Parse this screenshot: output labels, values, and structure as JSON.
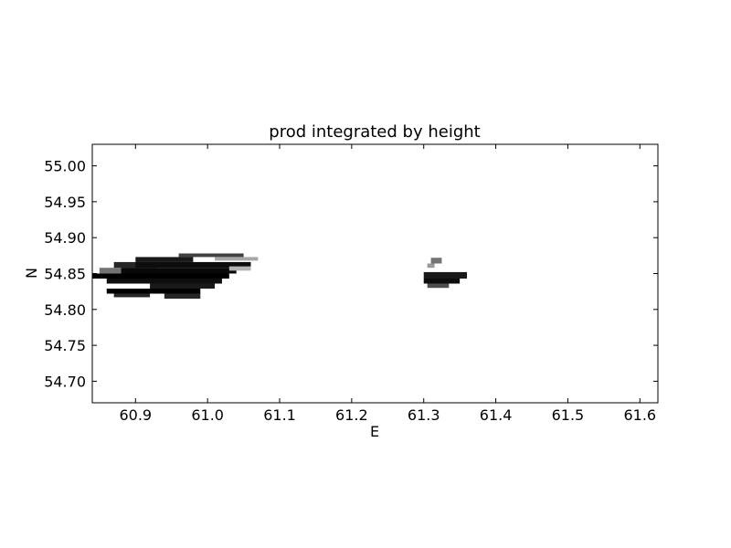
{
  "chart_data": {
    "type": "heatmap",
    "title": "prod integrated by height",
    "xlabel": "E",
    "ylabel": "N",
    "xlim": [
      60.84,
      61.625
    ],
    "ylim": [
      54.67,
      55.03
    ],
    "x_ticks": [
      60.9,
      61.0,
      61.1,
      61.2,
      61.3,
      61.4,
      61.5,
      61.6
    ],
    "x_tick_labels": [
      "60.9",
      "61.0",
      "61.1",
      "61.2",
      "61.3",
      "61.4",
      "61.5",
      "61.6"
    ],
    "y_ticks": [
      54.7,
      54.75,
      54.8,
      54.85,
      54.9,
      54.95,
      55.0
    ],
    "y_tick_labels": [
      "54.70",
      "54.75",
      "54.80",
      "54.85",
      "54.90",
      "54.95",
      "55.00"
    ],
    "colormap": "white-to-black",
    "grid": false,
    "cells": [
      {
        "x0": 60.84,
        "x1": 60.87,
        "y0": 54.843,
        "y1": 54.85,
        "v": 0.35
      },
      {
        "x0": 60.85,
        "x1": 60.9,
        "y0": 54.85,
        "y1": 54.858,
        "v": 0.55
      },
      {
        "x0": 60.87,
        "x1": 60.93,
        "y0": 54.858,
        "y1": 54.866,
        "v": 0.85
      },
      {
        "x0": 60.9,
        "x1": 60.98,
        "y0": 54.866,
        "y1": 54.873,
        "v": 0.9
      },
      {
        "x0": 60.96,
        "x1": 61.05,
        "y0": 54.873,
        "y1": 54.878,
        "v": 0.75
      },
      {
        "x0": 61.01,
        "x1": 61.07,
        "y0": 54.868,
        "y1": 54.873,
        "v": 0.35
      },
      {
        "x0": 60.9,
        "x1": 61.06,
        "y0": 54.858,
        "y1": 54.866,
        "v": 0.95
      },
      {
        "x0": 60.88,
        "x1": 61.04,
        "y0": 54.85,
        "y1": 54.858,
        "v": 0.97
      },
      {
        "x0": 60.84,
        "x1": 61.03,
        "y0": 54.843,
        "y1": 54.85,
        "v": 1.0
      },
      {
        "x0": 60.86,
        "x1": 61.02,
        "y0": 54.836,
        "y1": 54.843,
        "v": 0.95
      },
      {
        "x0": 60.92,
        "x1": 61.01,
        "y0": 54.829,
        "y1": 54.836,
        "v": 0.9
      },
      {
        "x0": 60.86,
        "x1": 60.99,
        "y0": 54.822,
        "y1": 54.829,
        "v": 1.0
      },
      {
        "x0": 60.87,
        "x1": 60.92,
        "y0": 54.817,
        "y1": 54.822,
        "v": 0.85
      },
      {
        "x0": 60.94,
        "x1": 60.99,
        "y0": 54.815,
        "y1": 54.822,
        "v": 0.85
      },
      {
        "x0": 61.03,
        "x1": 61.06,
        "y0": 54.854,
        "y1": 54.86,
        "v": 0.3
      },
      {
        "x0": 61.31,
        "x1": 61.325,
        "y0": 54.864,
        "y1": 54.872,
        "v": 0.55
      },
      {
        "x0": 61.305,
        "x1": 61.315,
        "y0": 54.858,
        "y1": 54.864,
        "v": 0.4
      },
      {
        "x0": 61.3,
        "x1": 61.36,
        "y0": 54.843,
        "y1": 54.852,
        "v": 0.9
      },
      {
        "x0": 61.3,
        "x1": 61.35,
        "y0": 54.836,
        "y1": 54.843,
        "v": 0.95
      },
      {
        "x0": 61.305,
        "x1": 61.335,
        "y0": 54.83,
        "y1": 54.836,
        "v": 0.7
      }
    ]
  }
}
